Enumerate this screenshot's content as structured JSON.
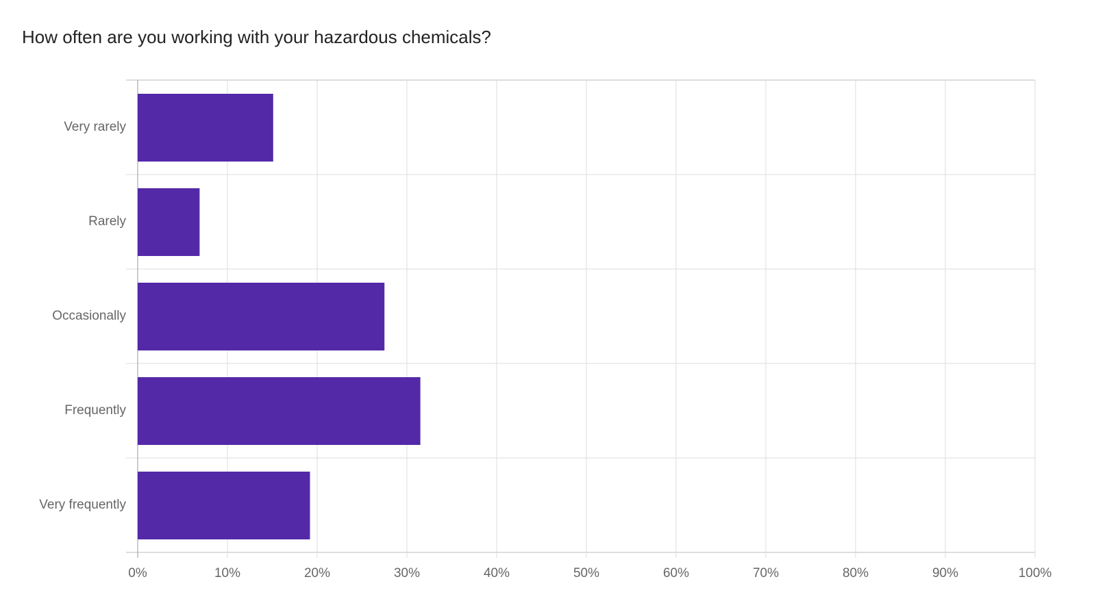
{
  "chart_data": {
    "type": "bar",
    "orientation": "horizontal",
    "title": "How often are you working with your hazardous chemicals?",
    "categories": [
      "Very rarely",
      "Rarely",
      "Occasionally",
      "Frequently",
      "Very frequently"
    ],
    "values": [
      15.1,
      6.9,
      27.5,
      31.5,
      19.2
    ],
    "color": "#5329a8",
    "xlim": [
      0,
      100
    ],
    "xticks": [
      {
        "value": 0,
        "label": "0%"
      },
      {
        "value": 10,
        "label": "10%"
      },
      {
        "value": 20,
        "label": "20%"
      },
      {
        "value": 30,
        "label": "30%"
      },
      {
        "value": 40,
        "label": "40%"
      },
      {
        "value": 50,
        "label": "50%"
      },
      {
        "value": 60,
        "label": "60%"
      },
      {
        "value": 70,
        "label": "70%"
      },
      {
        "value": 80,
        "label": "80%"
      },
      {
        "value": 90,
        "label": "90%"
      },
      {
        "value": 100,
        "label": "100%"
      }
    ],
    "grid": true
  }
}
